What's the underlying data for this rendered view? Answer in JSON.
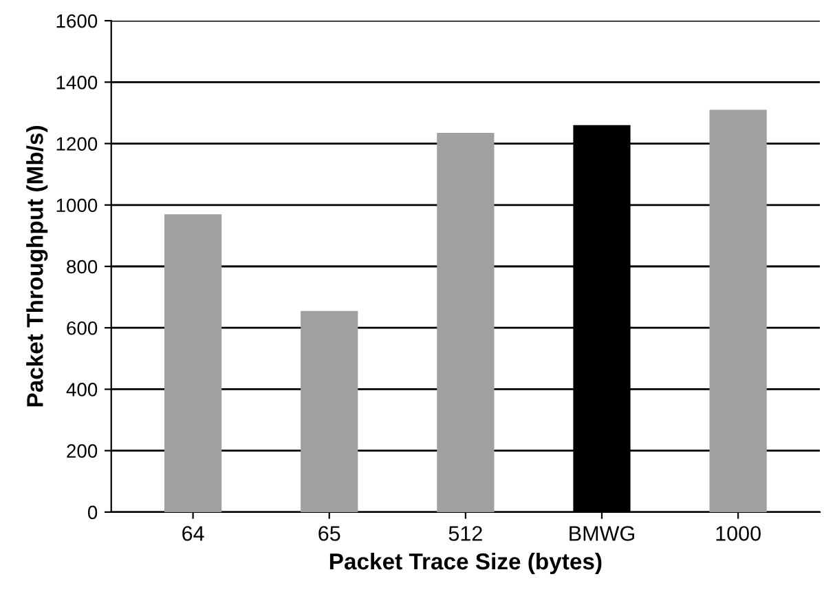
{
  "chart_data": {
    "type": "bar",
    "xlabel": "Packet Trace Size (bytes)",
    "ylabel": "Packet Throughput (Mb/s)",
    "categories": [
      "64",
      "65",
      "512",
      "BMWG",
      "1000"
    ],
    "values": [
      970,
      655,
      1235,
      1260,
      1310
    ],
    "colors": [
      "#a0a0a0",
      "#a0a0a0",
      "#a0a0a0",
      "#000000",
      "#a0a0a0"
    ],
    "ylim": [
      0,
      1600
    ],
    "yticks": [
      0,
      200,
      400,
      600,
      800,
      1000,
      1200,
      1400,
      1600
    ],
    "grid": "y",
    "legend": false
  }
}
